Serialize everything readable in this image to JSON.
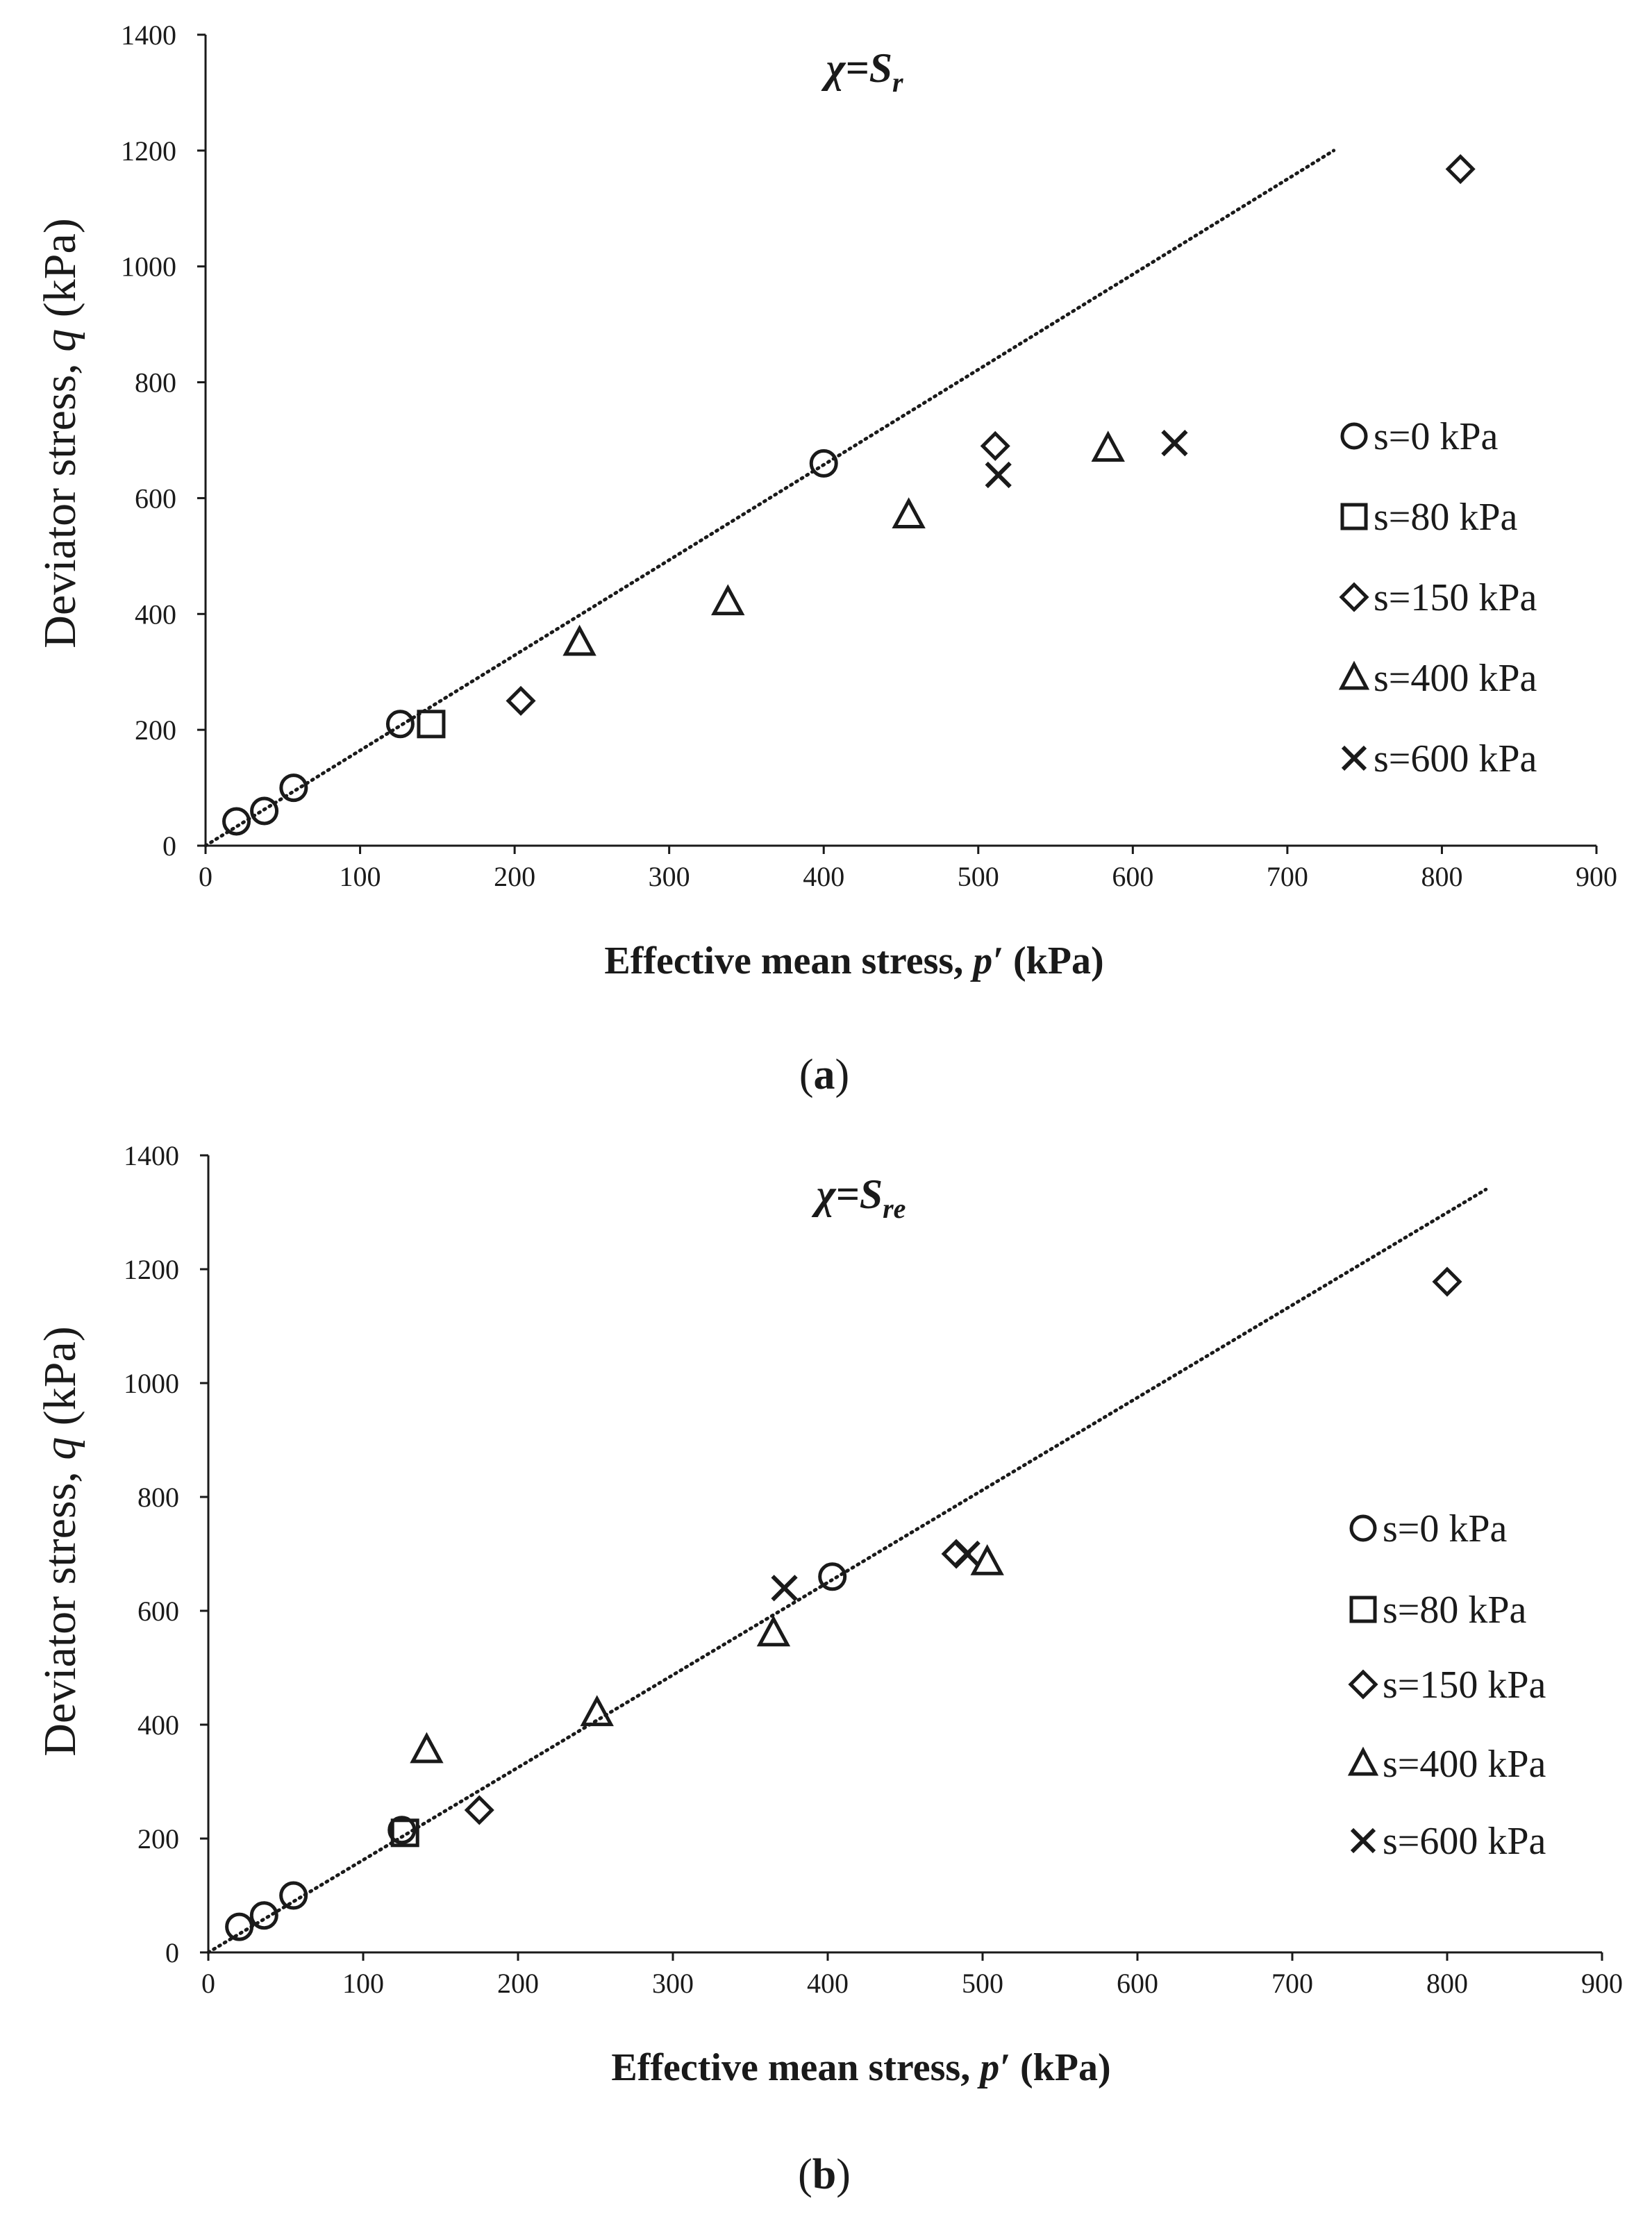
{
  "legend": [
    {
      "marker": "circle",
      "label": "s=0 kPa"
    },
    {
      "marker": "square",
      "label": "s=80 kPa"
    },
    {
      "marker": "diamond",
      "label": "s=150 kPa"
    },
    {
      "marker": "triangle",
      "label": "s=400 kPa"
    },
    {
      "marker": "cross",
      "label": "s=600 kPa"
    }
  ],
  "colors": {
    "ink": "#1a1a1a",
    "background": "#ffffff"
  },
  "chart_data": [
    {
      "type": "scatter",
      "panel": "a",
      "caption_open": "(",
      "caption_letter": "a",
      "caption_close": ")",
      "title_main": "χ=S",
      "title_sub": "r",
      "xlabel_prefix": "Effective mean stress, ",
      "xlabel_var": "p′",
      "xlabel_suffix": " (kPa)",
      "ylabel_prefix": "Deviator stress, ",
      "ylabel_var": "q",
      "ylabel_suffix": " (kPa)",
      "xlim": [
        0,
        900
      ],
      "ylim": [
        0,
        1400
      ],
      "xticks": [
        0,
        100,
        200,
        300,
        400,
        500,
        600,
        700,
        800,
        900
      ],
      "yticks": [
        0,
        200,
        400,
        600,
        800,
        1000,
        1200,
        1400
      ],
      "legend_position": "right",
      "trendline": {
        "style": "dotted",
        "from": [
          0,
          0
        ],
        "to": [
          730,
          1200
        ]
      },
      "series": [
        {
          "name": "s=0 kPa",
          "marker": "circle",
          "points": [
            [
              20,
              42
            ],
            [
              38,
              60
            ],
            [
              57,
              100
            ],
            [
              126,
              210
            ],
            [
              400,
              660
            ]
          ]
        },
        {
          "name": "s=80 kPa",
          "marker": "square",
          "points": [
            [
              146,
              210
            ]
          ]
        },
        {
          "name": "s=150 kPa",
          "marker": "diamond",
          "points": [
            [
              204,
              250
            ],
            [
              511,
              690
            ],
            [
              812,
              1168
            ]
          ]
        },
        {
          "name": "s=400 kPa",
          "marker": "triangle",
          "points": [
            [
              242,
              350
            ],
            [
              338,
              420
            ],
            [
              455,
              570
            ],
            [
              584,
              685
            ]
          ]
        },
        {
          "name": "s=600 kPa",
          "marker": "cross",
          "points": [
            [
              513,
              640
            ],
            [
              627,
              695
            ]
          ]
        }
      ]
    },
    {
      "type": "scatter",
      "panel": "b",
      "caption_open": "(",
      "caption_letter": "b",
      "caption_close": ")",
      "title_main": "χ=S",
      "title_sub": "re",
      "xlabel_prefix": "Effective mean stress, ",
      "xlabel_var": "p′",
      "xlabel_suffix": " (kPa)",
      "ylabel_prefix": "Deviator stress, ",
      "ylabel_var": "q",
      "ylabel_suffix": " (kPa)",
      "xlim": [
        0,
        900
      ],
      "ylim": [
        0,
        1400
      ],
      "xticks": [
        0,
        100,
        200,
        300,
        400,
        500,
        600,
        700,
        800,
        900
      ],
      "yticks": [
        0,
        200,
        400,
        600,
        800,
        1000,
        1200,
        1400
      ],
      "legend_position": "right",
      "trendline": {
        "style": "dotted",
        "from": [
          0,
          0
        ],
        "to": [
          825,
          1340
        ]
      },
      "series": [
        {
          "name": "s=0 kPa",
          "marker": "circle",
          "points": [
            [
              20,
              45
            ],
            [
              36,
              65
            ],
            [
              55,
              100
            ],
            [
              125,
              215
            ],
            [
              403,
              660
            ]
          ]
        },
        {
          "name": "s=80 kPa",
          "marker": "square",
          "points": [
            [
              127,
              210
            ]
          ]
        },
        {
          "name": "s=150 kPa",
          "marker": "diamond",
          "points": [
            [
              175,
              250
            ],
            [
              483,
              700
            ],
            [
              800,
              1178
            ]
          ]
        },
        {
          "name": "s=400 kPa",
          "marker": "triangle",
          "points": [
            [
              141,
              355
            ],
            [
              251,
              420
            ],
            [
              365,
              560
            ],
            [
              503,
              685
            ]
          ]
        },
        {
          "name": "s=600 kPa",
          "marker": "cross",
          "points": [
            [
              372,
              640
            ],
            [
              490,
              700
            ]
          ]
        }
      ]
    }
  ]
}
